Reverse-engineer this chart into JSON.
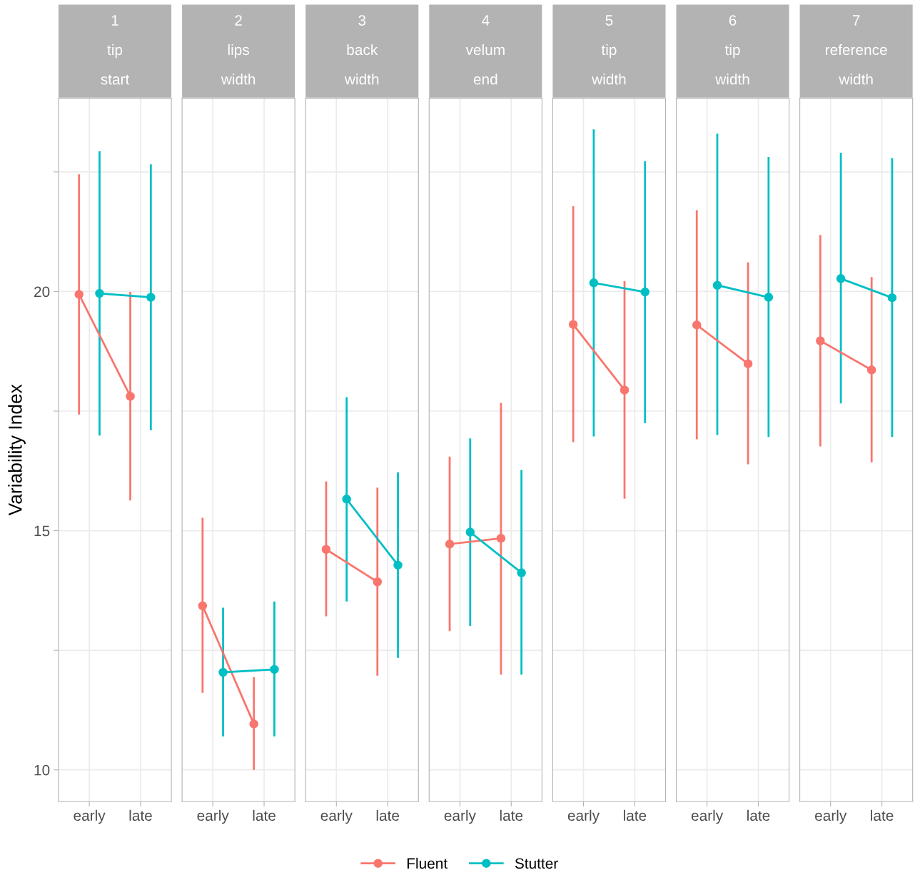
{
  "chart_data": [
    {
      "type": "line",
      "title": "1\ntip\nstart",
      "ylabel": "Variability Index",
      "categories": [
        "early",
        "late"
      ],
      "ylim": [
        9.34,
        24.04
      ],
      "yticks": [
        10,
        {
          "value": 12.5,
          "label": null
        },
        15,
        {
          "value": 17.5,
          "label": null
        },
        20,
        {
          "value": 22.5,
          "label": null
        }
      ],
      "grid": true,
      "marker": "circle",
      "legend": "bottom",
      "series": [
        {
          "name": "Fluent",
          "color": "#f8766d",
          "values": [
            19.94,
            17.81
          ],
          "errors": [
            [
              17.43,
              22.45
            ],
            [
              15.63,
              19.99
            ]
          ]
        },
        {
          "name": "Stutter",
          "color": "#00bfc4",
          "values": [
            19.96,
            19.88
          ],
          "errors": [
            [
              16.99,
              22.93
            ],
            [
              17.1,
              22.66
            ]
          ]
        }
      ]
    },
    {
      "type": "line",
      "title": "2\nlips\nwidth",
      "categories": [
        "early",
        "late"
      ],
      "ylim": [
        9.34,
        24.04
      ],
      "yticks": [
        10,
        {
          "value": 12.5,
          "label": null
        },
        15,
        {
          "value": 17.5,
          "label": null
        },
        20,
        {
          "value": 22.5,
          "label": null
        }
      ],
      "grid": true,
      "marker": "circle",
      "tick_labels": "x",
      "series": [
        {
          "color": "#f8766d",
          "values": [
            13.43,
            10.96
          ],
          "errors": [
            [
              11.61,
              15.27
            ],
            [
              10.0,
              11.94
            ]
          ]
        },
        {
          "color": "#00bfc4",
          "values": [
            12.04,
            12.1
          ],
          "errors": [
            [
              10.7,
              13.39
            ],
            [
              10.7,
              13.52
            ]
          ]
        }
      ]
    },
    {
      "type": "line",
      "title": "3\nback\nwidth",
      "categories": [
        "early",
        "late"
      ],
      "ylim": [
        9.34,
        24.04
      ],
      "yticks": [
        10,
        {
          "value": 12.5,
          "label": null
        },
        15,
        {
          "value": 17.5,
          "label": null
        },
        20,
        {
          "value": 22.5,
          "label": null
        }
      ],
      "grid": true,
      "marker": "circle",
      "tick_labels": "x",
      "series": [
        {
          "color": "#f8766d",
          "values": [
            14.61,
            13.93
          ],
          "errors": [
            [
              13.21,
              16.03
            ],
            [
              11.97,
              15.9
            ]
          ]
        },
        {
          "color": "#00bfc4",
          "values": [
            15.66,
            14.28
          ],
          "errors": [
            [
              13.52,
              17.79
            ],
            [
              12.34,
              16.22
            ]
          ]
        }
      ]
    },
    {
      "type": "line",
      "title": "4\nvelum\nend",
      "categories": [
        "early",
        "late"
      ],
      "ylim": [
        9.34,
        24.04
      ],
      "yticks": [
        10,
        {
          "value": 12.5,
          "label": null
        },
        15,
        {
          "value": 17.5,
          "label": null
        },
        20,
        {
          "value": 22.5,
          "label": null
        }
      ],
      "grid": true,
      "marker": "circle",
      "tick_labels": "x",
      "series": [
        {
          "color": "#f8766d",
          "values": [
            14.72,
            14.84
          ],
          "errors": [
            [
              12.9,
              16.55
            ],
            [
              11.99,
              17.67
            ]
          ]
        },
        {
          "color": "#00bfc4",
          "values": [
            14.97,
            14.12
          ],
          "errors": [
            [
              13.01,
              16.93
            ],
            [
              11.99,
              16.27
            ]
          ]
        }
      ]
    },
    {
      "type": "line",
      "title": "5\ntip\nwidth",
      "categories": [
        "early",
        "late"
      ],
      "ylim": [
        9.34,
        24.04
      ],
      "yticks": [
        10,
        {
          "value": 12.5,
          "label": null
        },
        15,
        {
          "value": 17.5,
          "label": null
        },
        20,
        {
          "value": 22.5,
          "label": null
        }
      ],
      "grid": true,
      "marker": "circle",
      "tick_labels": "x",
      "series": [
        {
          "color": "#f8766d",
          "values": [
            19.31,
            17.94
          ],
          "errors": [
            [
              16.85,
              21.78
            ],
            [
              15.67,
              20.22
            ]
          ]
        },
        {
          "color": "#00bfc4",
          "values": [
            20.18,
            19.99
          ],
          "errors": [
            [
              16.97,
              23.39
            ],
            [
              17.25,
              22.72
            ]
          ]
        }
      ]
    },
    {
      "type": "line",
      "title": "6\ntip\nwidth",
      "categories": [
        "early",
        "late"
      ],
      "ylim": [
        9.34,
        24.04
      ],
      "yticks": [
        10,
        {
          "value": 12.5,
          "label": null
        },
        15,
        {
          "value": 17.5,
          "label": null
        },
        20,
        {
          "value": 22.5,
          "label": null
        }
      ],
      "grid": true,
      "marker": "circle",
      "tick_labels": "x",
      "series": [
        {
          "color": "#f8766d",
          "values": [
            19.3,
            18.49
          ],
          "errors": [
            [
              16.91,
              21.7
            ],
            [
              16.39,
              20.61
            ]
          ]
        },
        {
          "color": "#00bfc4",
          "values": [
            20.13,
            19.88
          ],
          "errors": [
            [
              17.0,
              23.3
            ],
            [
              16.96,
              22.81
            ]
          ]
        }
      ]
    },
    {
      "type": "line",
      "title": "7\nreference\nwidth",
      "categories": [
        "early",
        "late"
      ],
      "ylim": [
        9.34,
        24.04
      ],
      "yticks": [
        10,
        {
          "value": 12.5,
          "label": null
        },
        15,
        {
          "value": 17.5,
          "label": null
        },
        20,
        {
          "value": 22.5,
          "label": null
        }
      ],
      "grid": true,
      "marker": "circle",
      "tick_labels": "x",
      "series": [
        {
          "color": "#f8766d",
          "values": [
            18.97,
            18.36
          ],
          "errors": [
            [
              16.76,
              21.18
            ],
            [
              16.43,
              20.3
            ]
          ]
        },
        {
          "color": "#00bfc4",
          "values": [
            20.27,
            19.87
          ],
          "errors": [
            [
              17.66,
              22.9
            ],
            [
              16.96,
              22.79
            ]
          ]
        }
      ]
    }
  ]
}
